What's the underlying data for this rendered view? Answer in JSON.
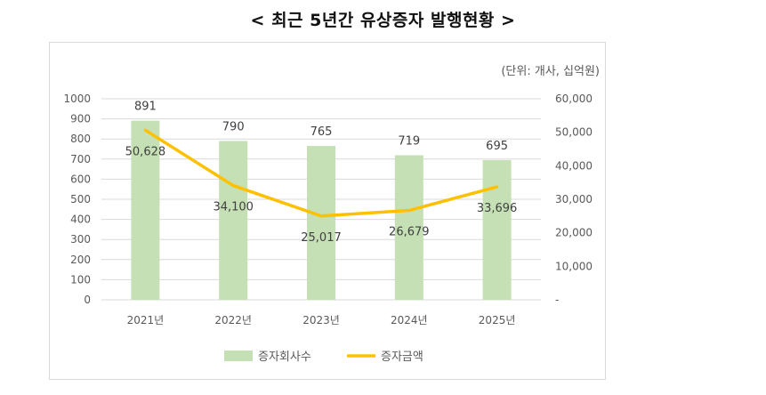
{
  "page_title": "< 최근 5년간 유상증자 발행현황 >",
  "unit_note": "(단위: 개사, 십억원)",
  "colors": {
    "bar": "#c5e0b4",
    "line": "#ffc000",
    "grid": "#d9d9d9",
    "text": "#595959"
  },
  "chart_data": {
    "type": "bar",
    "categories": [
      "2021년",
      "2022년",
      "2023년",
      "2024년",
      "2025년"
    ],
    "series": [
      {
        "name": "증자회사수",
        "type": "bar",
        "axis": "left",
        "values": [
          891,
          790,
          765,
          719,
          695
        ],
        "labels": [
          "891",
          "790",
          "765",
          "719",
          "695"
        ]
      },
      {
        "name": "증자금액",
        "type": "line",
        "axis": "right",
        "values": [
          50628,
          34100,
          25017,
          26679,
          33696
        ],
        "labels": [
          "50,628",
          "34,100",
          "25,017",
          "26,679",
          "33,696"
        ]
      }
    ],
    "y_left": {
      "lim": [
        0,
        1000
      ],
      "ticks": [
        0,
        100,
        200,
        300,
        400,
        500,
        600,
        700,
        800,
        900,
        1000
      ],
      "tick_labels": [
        "0",
        "100",
        "200",
        "300",
        "400",
        "500",
        "600",
        "700",
        "800",
        "900",
        "1000"
      ]
    },
    "y_right": {
      "lim": [
        0,
        60000
      ],
      "ticks": [
        0,
        10000,
        20000,
        30000,
        40000,
        50000,
        60000
      ],
      "tick_labels": [
        "-",
        "10,000",
        "20,000",
        "30,000",
        "40,000",
        "50,000",
        "60,000"
      ]
    },
    "grid": true,
    "legend_position": "bottom"
  }
}
